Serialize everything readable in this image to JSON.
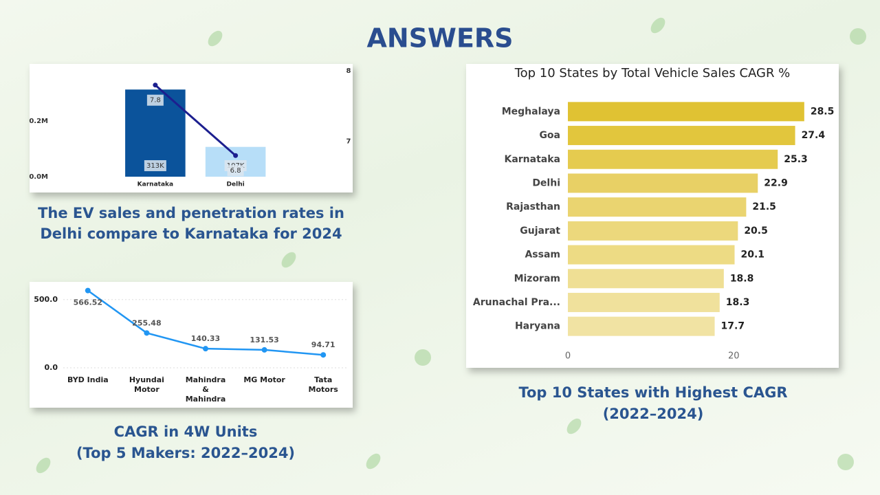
{
  "slide": {
    "title": "ANSWERS",
    "captions": [
      [
        "The EV sales and penetration rates in",
        "Delhi compare to Karnataka for 2024"
      ],
      [
        "CAGR in 4W Units",
        "(Top 5 Makers: 2022–2024)"
      ],
      [
        "Top 10 States with Highest CAGR",
        "(2022–2024)"
      ]
    ]
  },
  "chart_data": [
    {
      "type": "combo",
      "categories": [
        "Karnataka",
        "Delhi"
      ],
      "series": [
        {
          "type": "bar",
          "colors": [
            "#0b539b",
            "#b7def8"
          ],
          "values": [
            313000,
            107000
          ],
          "value_labels": [
            "313K",
            "107K"
          ]
        },
        {
          "type": "line",
          "axis": "y2",
          "color": "#1c1f8f",
          "values": [
            7.8,
            6.8
          ]
        }
      ],
      "ylim": [
        0,
        400000
      ],
      "yticks": [
        {
          "value": 0,
          "label": "0.0M"
        },
        {
          "value": 200000,
          "label": "0.2M"
        }
      ],
      "y2lim": [
        6.5,
        8.08
      ],
      "y2ticks": [
        7,
        8
      ]
    },
    {
      "type": "line",
      "categories": [
        "BYD India",
        "Hyundai Motor",
        "Mahindra & Mahindra",
        "MG Motor",
        "Tata Motors"
      ],
      "color": "#2196f3",
      "values": [
        566.52,
        255.48,
        140.33,
        131.53,
        94.71
      ],
      "ylim": [
        0,
        620
      ],
      "yticks": [
        {
          "value": 0,
          "label": "0.0"
        },
        {
          "value": 500,
          "label": "500.0"
        }
      ],
      "grid": true
    },
    {
      "type": "hbar",
      "title": "Top 10 States by Total Vehicle Sales CAGR %",
      "categories": [
        "Meghalaya",
        "Goa",
        "Karnataka",
        "Delhi",
        "Rajasthan",
        "Gujarat",
        "Assam",
        "Mizoram",
        "Arunachal Pra...",
        "Haryana"
      ],
      "values": [
        28.5,
        27.4,
        25.3,
        22.9,
        21.5,
        20.5,
        20.1,
        18.8,
        18.3,
        17.7
      ],
      "colors": [
        "#e0c233",
        "#e2c63d",
        "#e5cb4f",
        "#e8d065",
        "#ead470",
        "#ecd87c",
        "#eddb84",
        "#efdf94",
        "#f0e19c",
        "#f1e3a3"
      ],
      "xlim": [
        0,
        31
      ],
      "xticks": [
        0,
        20
      ]
    }
  ]
}
